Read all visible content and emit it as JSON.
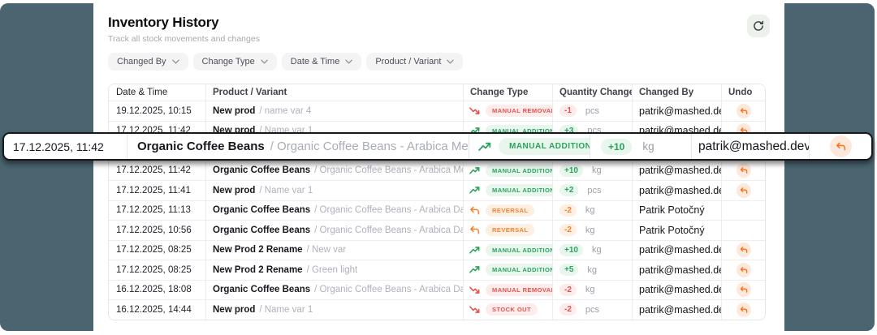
{
  "header": {
    "title": "Inventory History",
    "subtitle": "Track all stock movements and changes",
    "refresh_icon": "refresh-icon"
  },
  "filters": [
    {
      "label": "Changed By"
    },
    {
      "label": "Change Type"
    },
    {
      "label": "Date & Time"
    },
    {
      "label": "Product / Variant"
    }
  ],
  "table": {
    "columns": [
      "Date & Time",
      "Product / Variant",
      "Change Type",
      "Quantity Change",
      "Changed By",
      "Undo"
    ],
    "rows": [
      {
        "date": "19.12.2025, 10:15",
        "product": "New prod",
        "variant": "/ name var 4",
        "change_type": "MANUAL REMOVAL",
        "trend": "down",
        "tone": "red",
        "qty": "-1",
        "unit": "pcs",
        "changed_by": "patrik@mashed.dev",
        "undo": true
      },
      {
        "date": "17.12.2025, 11:42",
        "product": "New prod",
        "variant": "/ Name var 1",
        "change_type": "MANUAL ADDITION",
        "trend": "up",
        "tone": "green",
        "qty": "+3",
        "unit": "pcs",
        "changed_by": "patrik@mashed.dev",
        "undo": true
      },
      {
        "placeholder": true
      },
      {
        "date": "17.12.2025, 11:42",
        "product": "Organic Coffee Beans",
        "variant": "/ Organic Coffee Beans - Arabica Medium Roast",
        "change_type": "MANUAL ADDITION",
        "trend": "up",
        "tone": "green",
        "qty": "+10",
        "unit": "kg",
        "changed_by": "patrik@mashed.dev",
        "undo": true
      },
      {
        "date": "17.12.2025, 11:41",
        "product": "New prod",
        "variant": "/ Name var 1",
        "change_type": "MANUAL ADDITION",
        "trend": "up",
        "tone": "green",
        "qty": "+2",
        "unit": "pcs",
        "changed_by": "patrik@mashed.dev",
        "undo": true
      },
      {
        "date": "17.12.2025, 11:13",
        "product": "Organic Coffee Beans",
        "variant": "/ Organic Coffee Beans - Arabica Dark Roast",
        "change_type": "REVERSAL",
        "trend": "reversal",
        "tone": "orange",
        "qty": "-2",
        "unit": "kg",
        "changed_by": "Patrik Potočný",
        "undo": false
      },
      {
        "date": "17.12.2025, 10:56",
        "product": "Organic Coffee Beans",
        "variant": "/ Organic Coffee Beans - Arabica Dark Roast",
        "change_type": "REVERSAL",
        "trend": "reversal",
        "tone": "orange",
        "qty": "-2",
        "unit": "kg",
        "changed_by": "Patrik Potočný",
        "undo": false
      },
      {
        "date": "17.12.2025, 08:25",
        "product": "New Prod 2 Rename",
        "variant": "/ New var",
        "change_type": "MANUAL ADDITION",
        "trend": "up",
        "tone": "green",
        "qty": "+10",
        "unit": "kg",
        "changed_by": "patrik@mashed.dev",
        "undo": true
      },
      {
        "date": "17.12.2025, 08:25",
        "product": "New Prod 2 Rename",
        "variant": "/ Green light",
        "change_type": "MANUAL ADDITION",
        "trend": "up",
        "tone": "green",
        "qty": "+5",
        "unit": "kg",
        "changed_by": "patrik@mashed.dev",
        "undo": true
      },
      {
        "date": "16.12.2025, 18:08",
        "product": "Organic Coffee Beans",
        "variant": "/ Organic Coffee Beans - Arabica Dark Roast",
        "change_type": "MANUAL REMOVAL",
        "trend": "down",
        "tone": "red",
        "qty": "-2",
        "unit": "kg",
        "changed_by": "patrik@mashed.dev",
        "undo": true
      },
      {
        "date": "16.12.2025, 14:44",
        "product": "New prod",
        "variant": "/ Name var 1",
        "change_type": "STOCK OUT",
        "trend": "down",
        "tone": "red",
        "qty": "-2",
        "unit": "pcs",
        "changed_by": "patrik@mashed.dev",
        "undo": true
      }
    ]
  },
  "overlay": {
    "date": "17.12.2025, 11:42",
    "product": "Organic Coffee Beans",
    "variant": "/ Organic Coffee Beans - Arabica Medium Roast",
    "change_type": "MANUAL ADDITION",
    "trend": "up",
    "tone": "green",
    "qty": "+10",
    "unit": "kg",
    "changed_by": "patrik@mashed.dev",
    "undo": true
  },
  "colors": {
    "backdrop": "#4a6570",
    "card": "#ffffff",
    "positive": "#2aa45d",
    "negative": "#ea504b",
    "reversal": "#f9812f",
    "undo_accent": "#f97316"
  }
}
